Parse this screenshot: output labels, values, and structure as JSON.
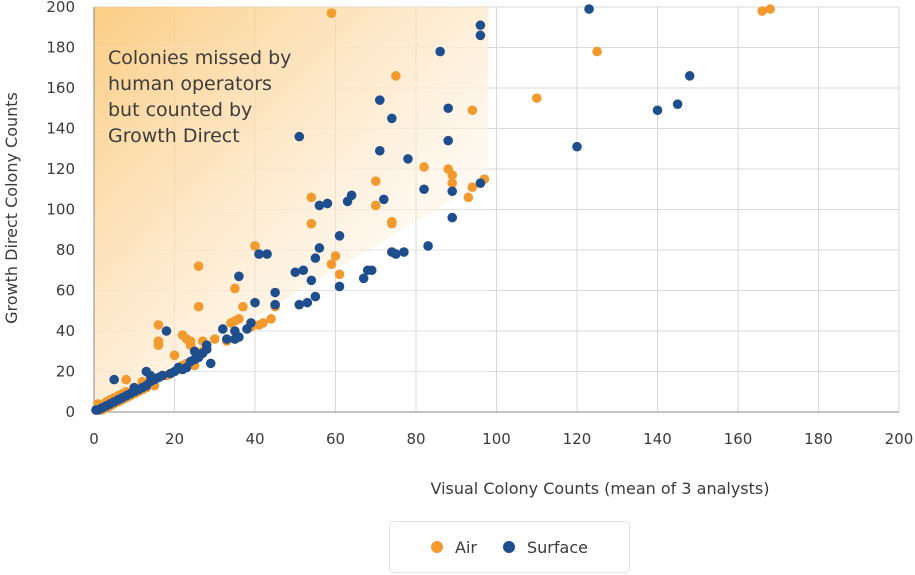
{
  "chart_data": {
    "type": "scatter",
    "title": "",
    "xlabel": "Visual Colony Counts (mean of 3 analysts)",
    "ylabel": "Growth Direct Colony Counts",
    "xlim": [
      0,
      200
    ],
    "ylim": [
      0,
      200
    ],
    "xticks": [
      "0",
      "20",
      "40",
      "60",
      "80",
      "100",
      "120",
      "140",
      "160",
      "180",
      "200"
    ],
    "yticks": [
      "0",
      "20",
      "40",
      "60",
      "80",
      "100",
      "120",
      "140",
      "160",
      "180",
      "200"
    ],
    "grid": true,
    "legend_position": "bottom",
    "annotation": {
      "lines": [
        "Colonies missed by",
        "human operators",
        "but counted by",
        "Growth Direct"
      ]
    },
    "colors": {
      "Air": "#f29a2e",
      "Surface": "#1f4e8c",
      "shade": "#fcd9a3"
    },
    "series": [
      {
        "name": "Air",
        "points": [
          [
            0,
            0
          ],
          [
            0.5,
            1
          ],
          [
            1,
            2
          ],
          [
            1,
            4
          ],
          [
            2,
            1
          ],
          [
            2,
            3
          ],
          [
            3,
            2
          ],
          [
            3,
            5
          ],
          [
            4,
            3
          ],
          [
            4,
            6
          ],
          [
            5,
            4
          ],
          [
            5,
            7
          ],
          [
            6,
            5
          ],
          [
            6,
            8
          ],
          [
            7,
            6
          ],
          [
            7,
            9
          ],
          [
            8,
            7
          ],
          [
            8,
            10
          ],
          [
            8,
            16
          ],
          [
            9,
            8
          ],
          [
            10,
            9
          ],
          [
            10,
            12
          ],
          [
            11,
            10
          ],
          [
            12,
            11
          ],
          [
            12,
            15
          ],
          [
            13,
            12
          ],
          [
            14,
            14
          ],
          [
            15,
            13
          ],
          [
            15,
            16
          ],
          [
            16,
            33
          ],
          [
            16,
            35
          ],
          [
            16,
            43
          ],
          [
            17,
            18
          ],
          [
            18,
            18
          ],
          [
            19,
            19
          ],
          [
            20,
            28
          ],
          [
            21,
            21
          ],
          [
            22,
            23
          ],
          [
            22,
            38
          ],
          [
            23,
            24
          ],
          [
            23,
            36
          ],
          [
            24,
            35
          ],
          [
            24,
            33
          ],
          [
            25,
            25
          ],
          [
            25,
            23
          ],
          [
            26,
            52
          ],
          [
            26,
            72
          ],
          [
            27,
            35
          ],
          [
            27,
            30
          ],
          [
            28,
            31
          ],
          [
            30,
            36
          ],
          [
            33,
            35
          ],
          [
            34,
            44
          ],
          [
            35,
            45
          ],
          [
            35,
            61
          ],
          [
            36,
            46
          ],
          [
            37,
            52
          ],
          [
            39,
            42
          ],
          [
            40,
            82
          ],
          [
            41,
            43
          ],
          [
            42,
            44
          ],
          [
            44,
            46
          ],
          [
            45,
            52
          ],
          [
            54,
            106
          ],
          [
            54,
            93
          ],
          [
            59,
            73
          ],
          [
            59,
            197
          ],
          [
            60,
            77
          ],
          [
            61,
            68
          ],
          [
            70,
            114
          ],
          [
            70,
            102
          ],
          [
            74,
            79
          ],
          [
            74,
            93
          ],
          [
            74,
            94
          ],
          [
            75,
            166
          ],
          [
            82,
            121
          ],
          [
            88,
            120
          ],
          [
            89,
            113
          ],
          [
            89,
            117
          ],
          [
            93,
            106
          ],
          [
            94,
            111
          ],
          [
            94,
            149
          ],
          [
            97,
            115
          ],
          [
            110,
            155
          ],
          [
            125,
            178
          ],
          [
            166,
            198
          ],
          [
            168,
            200
          ]
        ]
      },
      {
        "name": "Surface",
        "points": [
          [
            0,
            0
          ],
          [
            1,
            1
          ],
          [
            2,
            2
          ],
          [
            3,
            3
          ],
          [
            4,
            4
          ],
          [
            5,
            5
          ],
          [
            5,
            16
          ],
          [
            6,
            6
          ],
          [
            7,
            7
          ],
          [
            8,
            8
          ],
          [
            9,
            9
          ],
          [
            10,
            10
          ],
          [
            10,
            12
          ],
          [
            11,
            11
          ],
          [
            12,
            12
          ],
          [
            13,
            13
          ],
          [
            13,
            20
          ],
          [
            14,
            15
          ],
          [
            14,
            18
          ],
          [
            15,
            16
          ],
          [
            16,
            17
          ],
          [
            17,
            18
          ],
          [
            18,
            40
          ],
          [
            19,
            19
          ],
          [
            20,
            20
          ],
          [
            21,
            22
          ],
          [
            22,
            21
          ],
          [
            23,
            22
          ],
          [
            24,
            25
          ],
          [
            25,
            26
          ],
          [
            25,
            30
          ],
          [
            26,
            27
          ],
          [
            27,
            29
          ],
          [
            28,
            31
          ],
          [
            28,
            33
          ],
          [
            29,
            24
          ],
          [
            32,
            41
          ],
          [
            33,
            36
          ],
          [
            35,
            36
          ],
          [
            35,
            40
          ],
          [
            36,
            37
          ],
          [
            36,
            67
          ],
          [
            38,
            41
          ],
          [
            39,
            44
          ],
          [
            40,
            54
          ],
          [
            41,
            78
          ],
          [
            43,
            78
          ],
          [
            45,
            59
          ],
          [
            45,
            53
          ],
          [
            50,
            69
          ],
          [
            51,
            53
          ],
          [
            51,
            136
          ],
          [
            52,
            70
          ],
          [
            53,
            54
          ],
          [
            54,
            65
          ],
          [
            55,
            76
          ],
          [
            55,
            57
          ],
          [
            56,
            102
          ],
          [
            56,
            81
          ],
          [
            58,
            103
          ],
          [
            61,
            87
          ],
          [
            61,
            62
          ],
          [
            63,
            104
          ],
          [
            64,
            107
          ],
          [
            67,
            66
          ],
          [
            68,
            70
          ],
          [
            69,
            70
          ],
          [
            71,
            154
          ],
          [
            71,
            129
          ],
          [
            72,
            105
          ],
          [
            74,
            145
          ],
          [
            74,
            79
          ],
          [
            75,
            78
          ],
          [
            77,
            79
          ],
          [
            78,
            125
          ],
          [
            82,
            110
          ],
          [
            83,
            82
          ],
          [
            86,
            178
          ],
          [
            88,
            134
          ],
          [
            88,
            150
          ],
          [
            89,
            109
          ],
          [
            89,
            96
          ],
          [
            96,
            113
          ],
          [
            96,
            191
          ],
          [
            96,
            186
          ],
          [
            120,
            131
          ],
          [
            123,
            199
          ],
          [
            140,
            149
          ],
          [
            145,
            152
          ],
          [
            148,
            166
          ]
        ]
      }
    ]
  }
}
